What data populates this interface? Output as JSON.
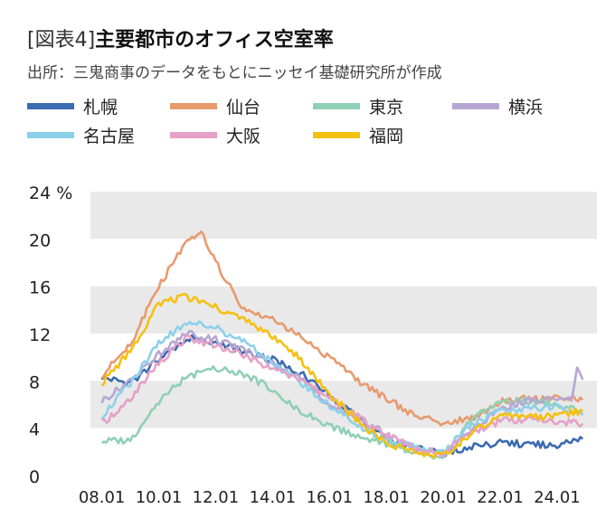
{
  "title": {
    "prefix": "[図表4]",
    "main": "主要都市のオフィス空室率"
  },
  "source": "出所：三鬼商事のデータをもとにニッセイ基礎研究所が作成",
  "chart_data": {
    "type": "line",
    "unit": "%",
    "ylim": [
      0,
      24
    ],
    "yticks": [
      0,
      4,
      8,
      12,
      16,
      20,
      24
    ],
    "ytick_labels": [
      "0",
      "4",
      "8",
      "12",
      "16",
      "20",
      "24 %"
    ],
    "xlim": [
      2007.6,
      2025.4
    ],
    "xticks": [
      2008,
      2010,
      2012,
      2014,
      2016,
      2018,
      2020,
      2022,
      2024
    ],
    "xtick_labels": [
      "08.01",
      "10.01",
      "12.01",
      "14.01",
      "16.01",
      "18.01",
      "20.01",
      "22.01",
      "24.01"
    ],
    "bands": "alternating gray bands between ticks",
    "legend_position": "top",
    "series": [
      {
        "name": "札幌",
        "color": "#3b6bb0",
        "x": [
          2008.0,
          2009.0,
          2010.0,
          2011.0,
          2012.0,
          2013.0,
          2014.0,
          2015.0,
          2016.0,
          2017.0,
          2018.0,
          2019.0,
          2020.0,
          2021.0,
          2022.0,
          2023.0,
          2024.0,
          2024.9
        ],
        "y": [
          8.3,
          7.8,
          9.8,
          11.6,
          11.3,
          10.4,
          9.8,
          8.6,
          6.8,
          4.8,
          3.1,
          2.3,
          1.9,
          2.4,
          2.8,
          2.6,
          2.6,
          3.1
        ]
      },
      {
        "name": "仙台",
        "color": "#e89a6f",
        "x": [
          2008.0,
          2009.0,
          2010.0,
          2011.0,
          2011.5,
          2012.0,
          2013.0,
          2014.0,
          2015.0,
          2016.0,
          2017.0,
          2018.0,
          2019.0,
          2020.0,
          2021.0,
          2022.0,
          2023.0,
          2024.0,
          2024.9
        ],
        "y": [
          8.5,
          11.0,
          16.0,
          19.8,
          20.5,
          18.0,
          14.0,
          13.3,
          11.7,
          10.0,
          8.0,
          6.5,
          5.0,
          4.5,
          4.8,
          6.3,
          6.5,
          6.6,
          6.4
        ]
      },
      {
        "name": "東京",
        "color": "#8fd0b5",
        "x": [
          2008.0,
          2009.0,
          2010.0,
          2011.0,
          2012.0,
          2013.0,
          2014.0,
          2015.0,
          2016.0,
          2017.0,
          2018.0,
          2019.0,
          2020.0,
          2021.0,
          2022.0,
          2023.0,
          2024.0,
          2024.9
        ],
        "y": [
          2.9,
          3.0,
          6.3,
          8.4,
          9.0,
          8.6,
          7.3,
          5.4,
          4.2,
          3.4,
          2.7,
          1.8,
          1.6,
          4.9,
          6.3,
          6.3,
          6.1,
          5.4
        ]
      },
      {
        "name": "横浜",
        "color": "#b6a6d3",
        "x": [
          2008.0,
          2009.0,
          2010.0,
          2011.0,
          2012.0,
          2013.0,
          2014.0,
          2015.0,
          2016.0,
          2017.0,
          2018.0,
          2019.0,
          2020.0,
          2021.0,
          2022.0,
          2023.0,
          2024.0,
          2024.5,
          2024.7,
          2024.9
        ],
        "y": [
          6.3,
          8.0,
          10.3,
          12.0,
          11.5,
          10.6,
          9.5,
          8.3,
          6.0,
          4.9,
          3.5,
          2.2,
          1.9,
          3.9,
          5.6,
          6.4,
          6.4,
          6.3,
          8.9,
          8.1
        ]
      },
      {
        "name": "名古屋",
        "color": "#8dd0ea",
        "x": [
          2008.0,
          2009.0,
          2010.0,
          2011.0,
          2012.0,
          2013.0,
          2014.0,
          2015.0,
          2016.0,
          2017.0,
          2018.0,
          2019.0,
          2020.0,
          2021.0,
          2022.0,
          2023.0,
          2024.0,
          2024.9
        ],
        "y": [
          5.0,
          7.8,
          11.2,
          13.0,
          12.5,
          11.3,
          9.5,
          7.8,
          6.0,
          4.3,
          3.0,
          2.4,
          2.0,
          4.4,
          5.4,
          5.6,
          5.8,
          5.1
        ]
      },
      {
        "name": "大阪",
        "color": "#e5a1c7",
        "x": [
          2008.0,
          2009.0,
          2010.0,
          2011.0,
          2012.0,
          2013.0,
          2014.0,
          2015.0,
          2016.0,
          2017.0,
          2018.0,
          2019.0,
          2020.0,
          2021.0,
          2022.0,
          2023.0,
          2024.0,
          2024.9
        ],
        "y": [
          4.4,
          6.4,
          9.6,
          11.6,
          11.0,
          10.2,
          9.0,
          8.0,
          6.6,
          5.0,
          3.4,
          2.3,
          1.9,
          3.7,
          4.6,
          4.8,
          4.6,
          4.4
        ]
      },
      {
        "name": "福岡",
        "color": "#f5c010",
        "x": [
          2008.0,
          2009.0,
          2010.0,
          2011.0,
          2012.0,
          2013.0,
          2014.0,
          2015.0,
          2016.0,
          2017.0,
          2018.0,
          2019.0,
          2020.0,
          2021.0,
          2022.0,
          2023.0,
          2024.0,
          2024.9
        ],
        "y": [
          7.8,
          10.5,
          14.6,
          15.1,
          14.2,
          13.2,
          11.8,
          9.8,
          6.9,
          4.6,
          2.8,
          2.0,
          1.7,
          3.6,
          5.0,
          5.0,
          5.0,
          5.5
        ]
      }
    ]
  }
}
